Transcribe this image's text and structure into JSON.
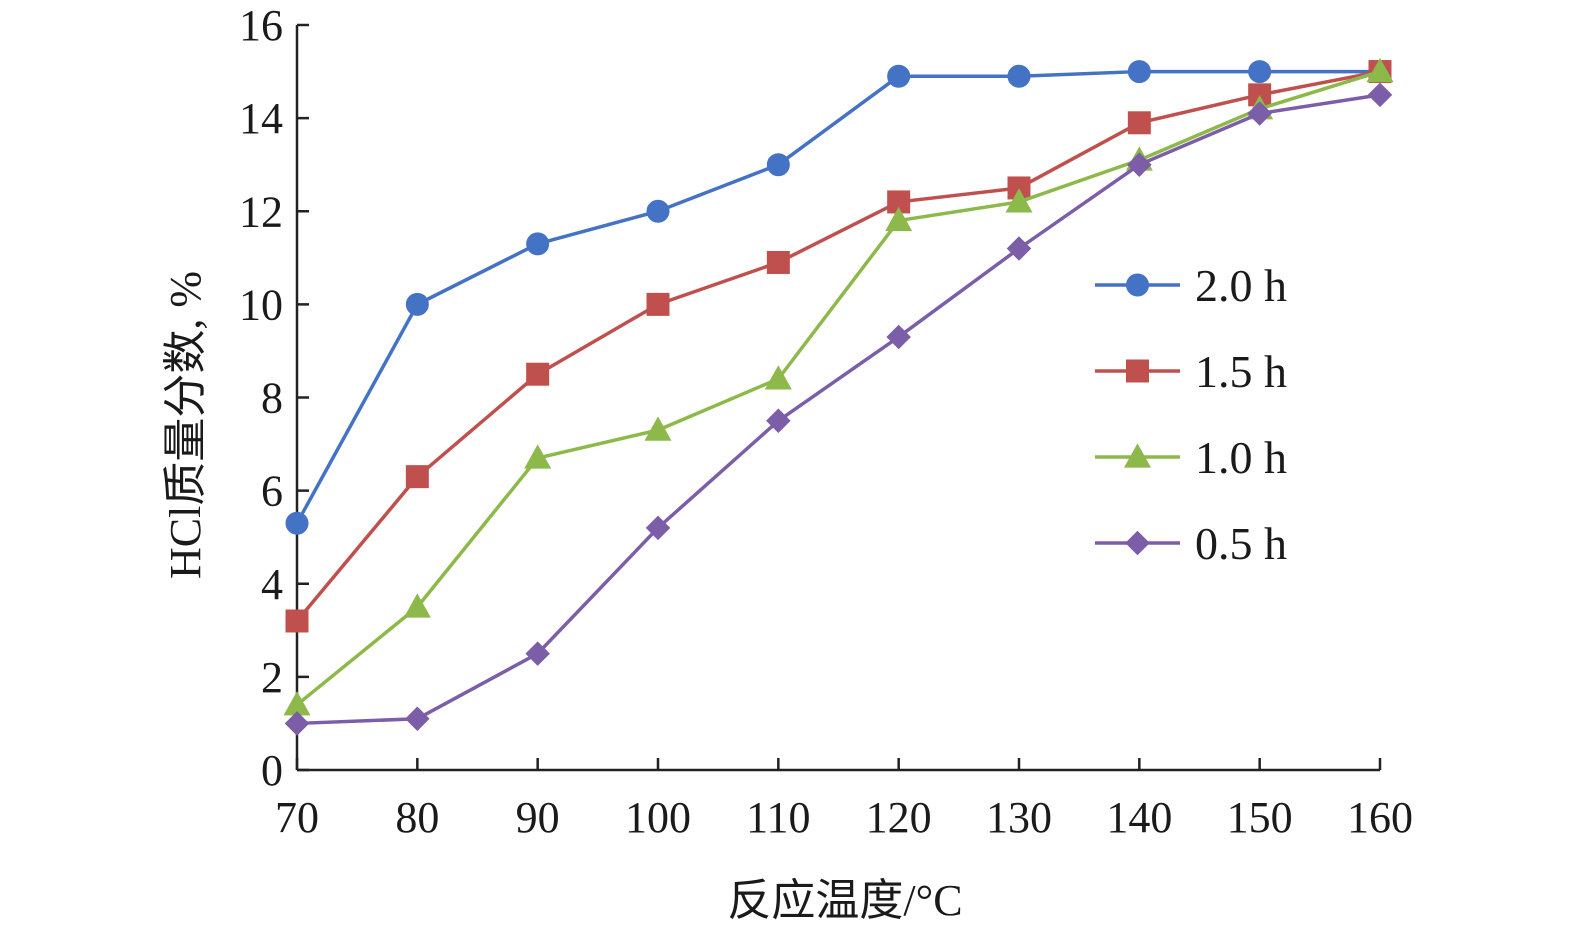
{
  "chart_data": {
    "type": "line",
    "title": "",
    "xlabel": "反应温度/°C",
    "ylabel": "HCl质量分数, %",
    "x": [
      70,
      80,
      90,
      100,
      110,
      120,
      130,
      140,
      150,
      160
    ],
    "xlim": [
      70,
      160
    ],
    "ylim": [
      0,
      16
    ],
    "xticks": [
      70,
      80,
      90,
      100,
      110,
      120,
      130,
      140,
      150,
      160
    ],
    "yticks": [
      0,
      2,
      4,
      6,
      8,
      10,
      12,
      14,
      16
    ],
    "grid": false,
    "legend_position": "right",
    "series": [
      {
        "name": "2.0 h",
        "color": "#4472c4",
        "marker": "circle",
        "values": [
          5.3,
          10.0,
          11.3,
          12.0,
          13.0,
          14.9,
          14.9,
          15.0,
          15.0,
          15.0
        ]
      },
      {
        "name": "1.5 h",
        "color": "#c0504d",
        "marker": "square",
        "values": [
          3.2,
          6.3,
          8.5,
          10.0,
          10.9,
          12.2,
          12.5,
          13.9,
          14.5,
          15.0
        ]
      },
      {
        "name": "1.0 h",
        "color": "#8db84a",
        "marker": "triangle",
        "values": [
          1.4,
          3.5,
          6.7,
          7.3,
          8.4,
          11.8,
          12.2,
          13.1,
          14.2,
          15.0
        ]
      },
      {
        "name": "0.5 h",
        "color": "#7b5ea7",
        "marker": "diamond",
        "values": [
          1.0,
          1.1,
          2.5,
          5.2,
          7.5,
          9.3,
          11.2,
          13.0,
          14.1,
          14.5
        ]
      }
    ]
  }
}
